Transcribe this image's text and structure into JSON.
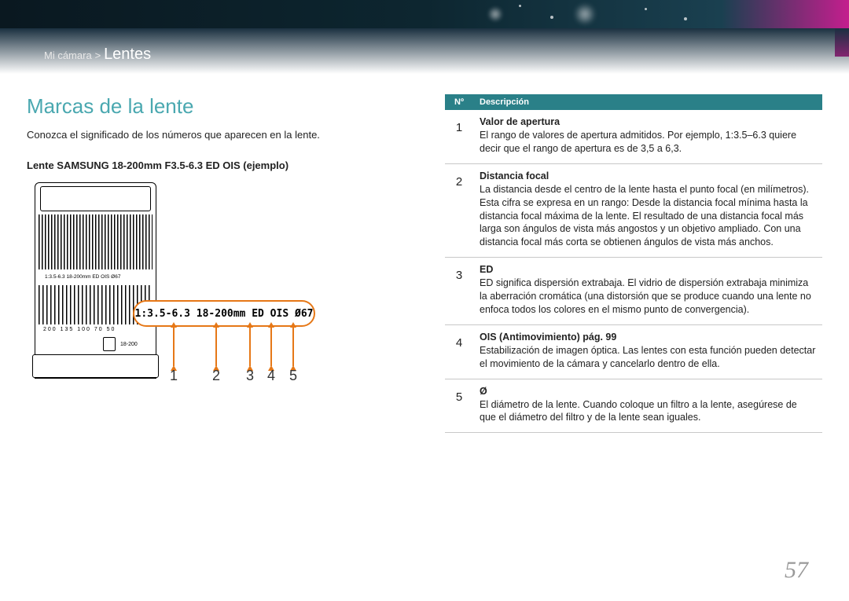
{
  "breadcrumb": {
    "parent": "Mi cámara",
    "sep": ">",
    "current": "Lentes"
  },
  "section_title": "Marcas de la lente",
  "intro": "Conozca el significado de los números que aparecen en la lente.",
  "example_label": "Lente SAMSUNG 18-200mm F3.5-6.3 ED OIS (ejemplo)",
  "callout_text": "1:3.5-6.3 18-200mm ED OIS Ø67",
  "callout_numbers": [
    "1",
    "2",
    "3",
    "4",
    "5"
  ],
  "lens_markings": {
    "top_label": "1:3.5-6.3 18-200mm ED OIS Ø67",
    "focal_scale": "200 135 100  70  50",
    "zoom_window": "18-200"
  },
  "table": {
    "head_num": "Nº",
    "head_desc": "Descripción",
    "rows": [
      {
        "n": "1",
        "term": "Valor de apertura",
        "body": "El rango de valores de apertura admitidos. Por ejemplo, 1:3.5–6.3 quiere decir que el rango de apertura es de 3,5 a 6,3."
      },
      {
        "n": "2",
        "term": "Distancia focal",
        "body": "La distancia desde el centro de la lente hasta el punto focal (en milímetros). Esta cifra se expresa en un rango: Desde la distancia focal mínima hasta la distancia focal máxima de la lente.\nEl resultado de una distancia focal más larga son ángulos de vista más angostos y un objetivo ampliado. Con una distancia focal más corta se obtienen ángulos de vista más anchos."
      },
      {
        "n": "3",
        "term": "ED",
        "body": "ED significa dispersión extrabaja. El vidrio de dispersión extrabaja minimiza la aberración cromática (una distorsión que se produce cuando una lente no enfoca todos los colores en el mismo punto de convergencia)."
      },
      {
        "n": "4",
        "term": "OIS (Antimovimiento) pág. 99",
        "body": "Estabilización de imagen óptica. Las lentes con esta función pueden detectar el movimiento de la cámara y cancelarlo dentro de ella."
      },
      {
        "n": "5",
        "term": "Ø",
        "body": "El diámetro de la lente. Cuando coloque un filtro a la lente, asegúrese de que el diámetro del filtro y de la lente sean iguales."
      }
    ]
  },
  "page_number": "57",
  "colors": {
    "accent_teal": "#4aa8b0",
    "table_head": "#2a8088",
    "callout_orange": "#e67817",
    "magenta": "#c41e8e"
  }
}
